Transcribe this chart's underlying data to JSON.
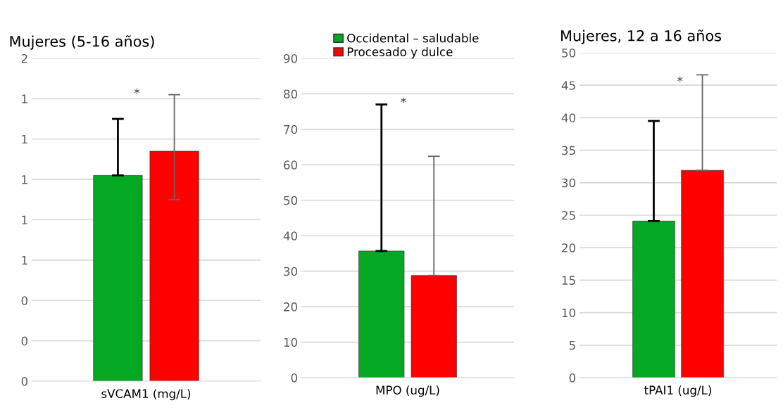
{
  "chart_data": [
    {
      "type": "bar",
      "title": "Mujeres (5-16 años)",
      "categories": [
        "sVCAM1 (mg/L)"
      ],
      "series": [
        {
          "color": "#05a822",
          "values": [
            1.02
          ],
          "errors": [
            [
              1.02,
              1.3
            ]
          ]
        },
        {
          "color": "#ff0000",
          "values": [
            1.14
          ],
          "errors": [
            [
              0.9,
              1.42
            ]
          ]
        }
      ],
      "ylim": [
        0,
        1.6
      ],
      "yticks": [
        0,
        {
          "value": 0.2,
          "label": "0"
        },
        {
          "value": 0.4,
          "label": "0"
        },
        {
          "value": 0.6,
          "label": "1"
        },
        {
          "value": 0.8,
          "label": "1"
        },
        {
          "value": 1.0,
          "label": "1"
        },
        {
          "value": 1.2,
          "label": "1"
        },
        {
          "value": 1.4,
          "label": "1"
        },
        {
          "value": 1.6,
          "label": "2"
        }
      ],
      "grid": "y",
      "annotations": [
        "*"
      ]
    },
    {
      "type": "bar",
      "categories": [
        "MPO (ug/L)"
      ],
      "series": [
        {
          "name": "Occidental – saludable",
          "color": "#05a822",
          "values": [
            35.7
          ],
          "errors": [
            [
              35.7,
              77.0
            ]
          ]
        },
        {
          "name": "Procesado y dulce",
          "color": "#ff0000",
          "values": [
            28.8
          ],
          "errors": [
            [
              28.8,
              62.4
            ]
          ]
        }
      ],
      "ylim": [
        0,
        90
      ],
      "yticks": [
        0,
        10,
        20,
        30,
        40,
        50,
        60,
        70,
        80,
        90
      ],
      "grid": "y",
      "legend": "top",
      "annotations": [
        "*"
      ]
    },
    {
      "type": "bar",
      "title": "Mujeres, 12 a 16 años",
      "categories": [
        "tPAI1 (ug/L)"
      ],
      "series": [
        {
          "color": "#05a822",
          "values": [
            24.1
          ],
          "errors": [
            [
              24.1,
              39.5
            ]
          ]
        },
        {
          "color": "#ff0000",
          "values": [
            31.9
          ],
          "errors": [
            [
              31.9,
              46.6
            ]
          ]
        }
      ],
      "ylim": [
        0,
        50
      ],
      "yticks": [
        0,
        5,
        10,
        15,
        20,
        25,
        30,
        35,
        40,
        45,
        50
      ],
      "grid": "y",
      "annotations": [
        "*"
      ]
    }
  ]
}
